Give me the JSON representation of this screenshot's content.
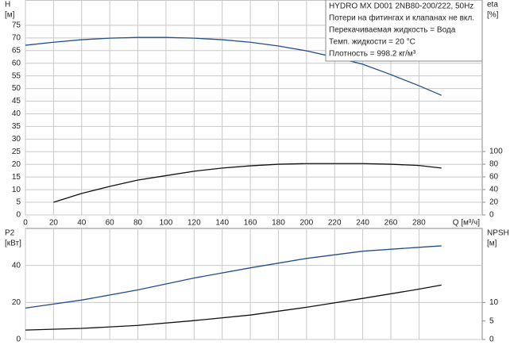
{
  "chart_data": [
    {
      "type": "line",
      "annotations": [
        "HYDRO MX D001 2NB80-200/222, 50Hz",
        "Потери на фитингах и клапанах не вкл.",
        "Перекачиваемая жидкость = Вода",
        "Темп. жидкости = 20 °C",
        "Плотность = 998.2 кг/м³"
      ],
      "x_label": "Q [м³/ч]",
      "y_label": "H",
      "y_unit": "[м]",
      "y2_label": "eta",
      "y2_unit": "[%]",
      "x": [
        0,
        20,
        40,
        60,
        80,
        100,
        120,
        140,
        160,
        180,
        200,
        220,
        240,
        260,
        280,
        296
      ],
      "series": [
        {
          "name": "H",
          "color": "#1f4e8c",
          "values": [
            67.1,
            68.3,
            69.3,
            69.9,
            70.2,
            70.2,
            69.9,
            69.3,
            68.3,
            66.8,
            64.9,
            62.4,
            59.6,
            55.5,
            51.1,
            47.3
          ]
        },
        {
          "name": "eta",
          "color": "#111111",
          "axis": "y2",
          "values": [
            null,
            20,
            34,
            45,
            55,
            62,
            69,
            74,
            77.5,
            80,
            81,
            81,
            81,
            80,
            78,
            74
          ]
        }
      ],
      "xlim": [
        0,
        325
      ],
      "xticks": [
        0,
        20,
        40,
        60,
        80,
        100,
        120,
        140,
        160,
        180,
        200,
        220,
        240,
        260,
        280
      ],
      "ylim": [
        0,
        85
      ],
      "yticks": [
        0,
        5,
        10,
        15,
        20,
        25,
        30,
        35,
        40,
        45,
        50,
        55,
        60,
        65,
        70,
        75
      ],
      "y2lim": [
        0,
        339
      ],
      "y2ticks": [
        0,
        20,
        40,
        60,
        80,
        100
      ],
      "grid": true
    },
    {
      "type": "line",
      "y_label": "P2",
      "y_unit": "[кВт]",
      "y2_label": "NPSH",
      "y2_unit": "[м]",
      "x": [
        0,
        40,
        80,
        120,
        160,
        200,
        240,
        280,
        296
      ],
      "series": [
        {
          "name": "P2",
          "color": "#1f4e8c",
          "values": [
            17,
            21.3,
            26.8,
            33.2,
            38.7,
            43.8,
            47.7,
            49.8,
            50.6
          ]
        },
        {
          "name": "NPSH",
          "color": "#111111",
          "axis": "y2",
          "values": [
            2.55,
            3,
            3.8,
            5.1,
            6.6,
            8.7,
            11.1,
            13.6,
            14.7
          ]
        }
      ],
      "xlim": [
        0,
        325
      ],
      "xticks": [
        0,
        20,
        40,
        60,
        80,
        100,
        120,
        140,
        160,
        180,
        200,
        220,
        240,
        260,
        280
      ],
      "ylim": [
        0,
        60
      ],
      "yticks": [
        0,
        20,
        40
      ],
      "y2lim": [
        0,
        30
      ],
      "y2ticks": [
        0,
        5,
        10
      ],
      "grid": true
    }
  ]
}
